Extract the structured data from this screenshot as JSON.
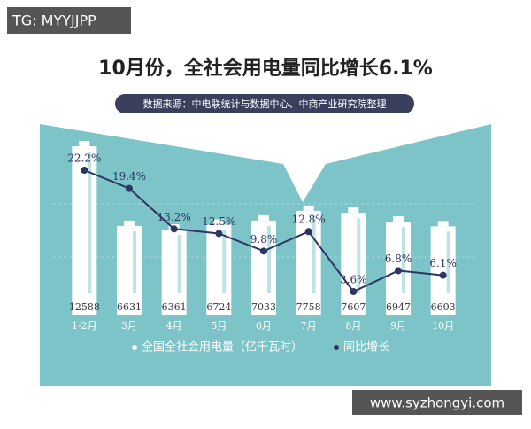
{
  "watermark": "TG: MYYJJPP",
  "site_watermark": "www.syzhongyi.com",
  "chart_data": {
    "type": "bar-line",
    "title": "10月份，全社会用电量同比增长6.1%",
    "subtitle": "数据来源：中电联统计与数据中心、中商产业研究院整理",
    "categories": [
      "1-2月",
      "3月",
      "4月",
      "5月",
      "6月",
      "7月",
      "8月",
      "9月",
      "10月"
    ],
    "series": [
      {
        "name": "全国全社会用电量（亿千瓦时）",
        "color": "#ffffff",
        "type": "bar",
        "values": [
          12588,
          6631,
          6361,
          6724,
          7033,
          7758,
          7607,
          6947,
          6603
        ]
      },
      {
        "name": "同比增长",
        "color": "#2d3561",
        "type": "line",
        "values": [
          22.2,
          19.4,
          13.2,
          12.5,
          9.8,
          12.8,
          3.6,
          6.8,
          6.1
        ],
        "value_labels": [
          "22.2%",
          "19.4%",
          "13.2%",
          "12.5%",
          "9.8%",
          "12.8%",
          "3.6%",
          "6.8%",
          "6.1%"
        ]
      }
    ]
  }
}
